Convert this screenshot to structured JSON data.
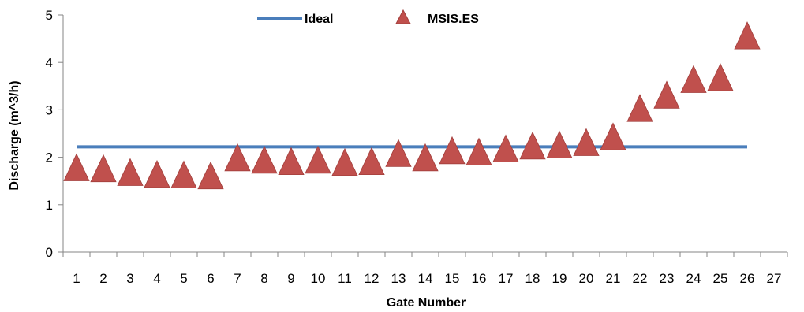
{
  "chart_data": {
    "type": "line+scatter",
    "xlabel": "Gate Number",
    "ylabel": "Discharge (m^3/h)",
    "xlim": [
      0.5,
      27.5
    ],
    "ylim": [
      0,
      5
    ],
    "x_ticks": [
      "1",
      "2",
      "3",
      "4",
      "5",
      "6",
      "7",
      "8",
      "9",
      "10",
      "11",
      "12",
      "13",
      "14",
      "15",
      "16",
      "17",
      "18",
      "19",
      "20",
      "21",
      "22",
      "23",
      "24",
      "25",
      "26",
      "27"
    ],
    "y_ticks": [
      "0",
      "1",
      "2",
      "3",
      "4",
      "5"
    ],
    "grid": false,
    "legend_position": "top-center",
    "series": [
      {
        "name": "Ideal",
        "type": "line",
        "color": "#4a7ebb",
        "x": [
          1,
          26
        ],
        "y": [
          2.22,
          2.22
        ]
      },
      {
        "name": "MSIS.ES",
        "type": "scatter",
        "marker": "triangle",
        "color": "#c0504d",
        "x": [
          1,
          2,
          3,
          4,
          5,
          6,
          7,
          8,
          9,
          10,
          11,
          12,
          13,
          14,
          15,
          16,
          17,
          18,
          19,
          20,
          21,
          22,
          23,
          24,
          25,
          26
        ],
        "y": [
          1.72,
          1.7,
          1.62,
          1.58,
          1.57,
          1.55,
          1.93,
          1.88,
          1.85,
          1.88,
          1.83,
          1.85,
          2.02,
          1.93,
          2.08,
          2.05,
          2.12,
          2.18,
          2.2,
          2.25,
          2.37,
          2.97,
          3.25,
          3.58,
          3.62,
          4.5
        ]
      }
    ]
  }
}
